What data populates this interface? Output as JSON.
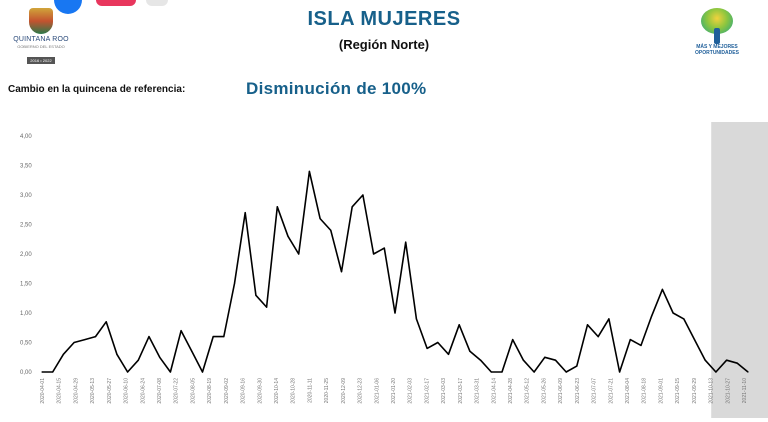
{
  "header": {
    "title": "ISLA MUJERES",
    "subtitle": "(Región Norte)",
    "left_logo": {
      "name": "QUINTANA ROO",
      "sub": "GOBIERNO DEL ESTADO",
      "year": "2016 • 2022"
    },
    "right_logo": {
      "line1": "MÁS Y MEJORES",
      "line2": "OPORTUNIDADES"
    }
  },
  "change": {
    "label": "Cambio en la quincena de referencia:",
    "value": "Disminución de 100%"
  },
  "colors": {
    "title": "#17608a",
    "line": "#000000",
    "shade": "#d9d9d9"
  },
  "chart_data": {
    "type": "line",
    "ylim": [
      0,
      4
    ],
    "yticks": [
      "0,00",
      "0,50",
      "1,00",
      "1,50",
      "2,00",
      "2,50",
      "3,00",
      "3,50",
      "4,00"
    ],
    "shaded_last": 4,
    "x": [
      "2020-04-01",
      "2020-04-10",
      "2020-04-19",
      "2020-04-28",
      "2020-05-07",
      "2020-05-16",
      "2020-05-25",
      "2020-06-03",
      "2020-06-12",
      "2020-06-21",
      "2020-06-30",
      "2020-07-09",
      "2020-07-18",
      "2020-07-27",
      "2020-08-05",
      "2020-08-14",
      "2020-08-23",
      "2020-09-01",
      "2020-09-10",
      "2020-09-19",
      "2020-09-28",
      "2020-10-07",
      "2020-10-16",
      "2020-10-25",
      "2020-11-03",
      "2020-11-12",
      "2020-11-21",
      "2020-11-30",
      "2020-12-09",
      "2020-12-18",
      "2020-12-27",
      "2021-01-05",
      "2021-01-14",
      "2021-01-23",
      "2021-02-01",
      "2021-02-10",
      "2021-02-19",
      "2021-02-28",
      "2021-03-09",
      "2021-03-18",
      "2021-03-27",
      "2021-04-05",
      "2021-04-14",
      "2021-04-23",
      "2021-05-02",
      "2021-05-11",
      "2021-05-20",
      "2021-05-29",
      "2021-06-07",
      "2021-06-16",
      "2021-06-25",
      "2021-07-04",
      "2021-07-13",
      "2021-07-22",
      "2021-07-31",
      "2021-08-09",
      "2021-08-18",
      "2021-08-27",
      "2021-09-05",
      "2021-09-14",
      "2021-09-23",
      "2021-10-02",
      "2021-10-11",
      "2021-10-20",
      "2021-10-29",
      "2021-11-07",
      "2021-11-16"
    ],
    "x_tick_labels": [
      "2020-04-01",
      "2020-04-15",
      "2020-04-29",
      "2020-05-13",
      "2020-05-27",
      "2020-06-10",
      "2020-06-24",
      "2020-07-08",
      "2020-07-22",
      "2020-08-05",
      "2020-08-19",
      "2020-09-02",
      "2020-09-16",
      "2020-09-30",
      "2020-10-14",
      "2020-10-28",
      "2020-11-11",
      "2020-11-25",
      "2020-12-09",
      "2020-12-23",
      "2021-01-06",
      "2021-01-20",
      "2021-02-03",
      "2021-02-17",
      "2021-03-03",
      "2021-03-17",
      "2021-03-31",
      "2021-04-14",
      "2021-04-28",
      "2021-05-12",
      "2021-05-26",
      "2021-06-09",
      "2021-06-23",
      "2021-07-07",
      "2021-07-21",
      "2021-08-04",
      "2021-08-18",
      "2021-09-01",
      "2021-09-15",
      "2021-09-29",
      "2021-10-13",
      "2021-10-27",
      "2021-11-10"
    ],
    "y": [
      0.0,
      0.0,
      0.3,
      0.5,
      0.55,
      0.6,
      0.85,
      0.3,
      0.0,
      0.2,
      0.6,
      0.25,
      0.0,
      0.7,
      0.35,
      0.0,
      0.6,
      0.6,
      1.5,
      2.7,
      1.3,
      1.1,
      2.8,
      2.3,
      2.0,
      3.4,
      2.6,
      2.4,
      1.7,
      2.8,
      3.0,
      2.0,
      2.1,
      1.0,
      2.2,
      0.9,
      0.4,
      0.5,
      0.3,
      0.8,
      0.35,
      0.2,
      0.0,
      0.0,
      0.55,
      0.2,
      0.0,
      0.25,
      0.2,
      0.0,
      0.1,
      0.8,
      0.6,
      0.9,
      0.0,
      0.55,
      0.45,
      0.95,
      1.4,
      1.0,
      0.9,
      0.55,
      0.2,
      0.0,
      0.2,
      0.15,
      0.0
    ]
  }
}
